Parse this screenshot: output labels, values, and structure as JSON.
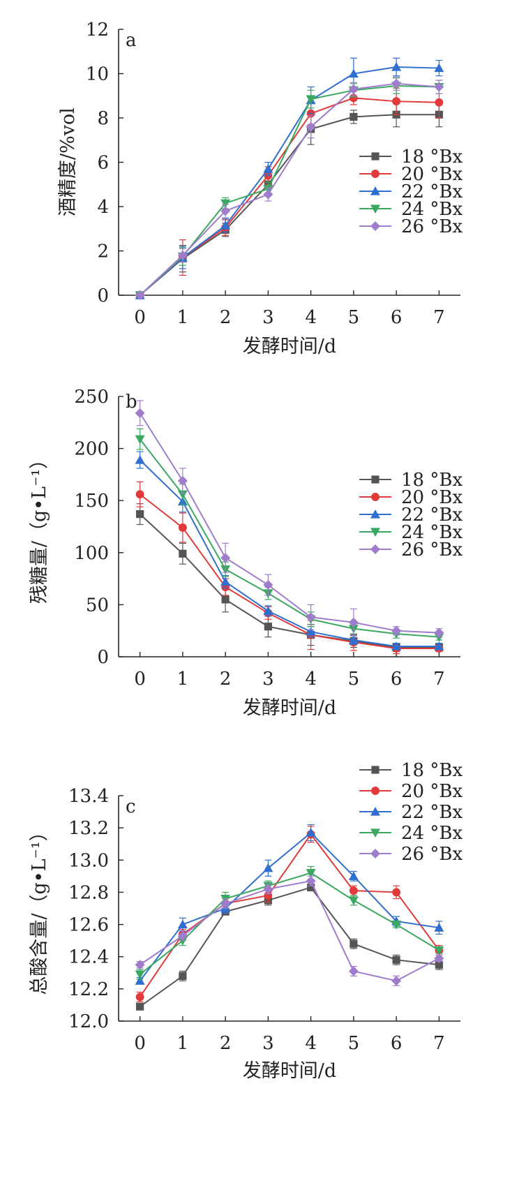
{
  "chart_data": [
    {
      "type": "line",
      "panel_label": "a",
      "ylabel": "酒精度/%vol",
      "xlabel": "发酵时间/d",
      "x": [
        0,
        1,
        2,
        3,
        4,
        5,
        6,
        7
      ],
      "ylim": [
        0,
        12
      ],
      "yticks": [
        0,
        2,
        4,
        6,
        8,
        10,
        12
      ],
      "ytick_labels": [
        "0",
        "2",
        "4",
        "6",
        "8",
        "10",
        "12"
      ],
      "legend_position": "middle-right",
      "series": [
        {
          "name": "18 °Bx",
          "color": "#555555",
          "marker": "square",
          "values": [
            0,
            1.65,
            2.95,
            5.0,
            7.5,
            8.05,
            8.15,
            8.15
          ],
          "errors": [
            0,
            0.6,
            0.3,
            0.4,
            0.7,
            0.3,
            0.55,
            0.55
          ]
        },
        {
          "name": "20 °Bx",
          "color": "#e03a3a",
          "marker": "circle",
          "values": [
            0,
            1.7,
            3.05,
            5.4,
            8.2,
            8.9,
            8.75,
            8.7
          ],
          "errors": [
            0,
            0.8,
            0.35,
            0.4,
            0.5,
            0.3,
            0.6,
            0.7
          ]
        },
        {
          "name": "22 °Bx",
          "color": "#2f6fd0",
          "marker": "triangle-up",
          "values": [
            0,
            1.7,
            3.15,
            5.7,
            8.8,
            10.0,
            10.3,
            10.25
          ],
          "errors": [
            0,
            0.5,
            0.3,
            0.3,
            0.6,
            0.7,
            0.4,
            0.35
          ]
        },
        {
          "name": "24 °Bx",
          "color": "#3aa860",
          "marker": "triangle-down",
          "values": [
            0,
            1.75,
            4.15,
            4.8,
            8.85,
            9.25,
            9.45,
            9.4
          ],
          "errors": [
            0,
            0.4,
            0.25,
            0.3,
            0.4,
            0.3,
            0.35,
            0.3
          ]
        },
        {
          "name": "26 °Bx",
          "color": "#a07ccc",
          "marker": "diamond",
          "values": [
            0,
            1.8,
            3.8,
            4.55,
            7.6,
            9.3,
            9.55,
            9.4
          ],
          "errors": [
            0,
            0.3,
            0.3,
            0.3,
            0.5,
            0.3,
            0.3,
            0.3
          ]
        }
      ]
    },
    {
      "type": "line",
      "panel_label": "b",
      "ylabel": "残糖量/（g•L⁻¹）",
      "xlabel": "发酵时间/d",
      "x": [
        0,
        1,
        2,
        3,
        4,
        5,
        6,
        7
      ],
      "ylim": [
        0,
        250
      ],
      "yticks": [
        0,
        50,
        100,
        150,
        200,
        250
      ],
      "ytick_labels": [
        "0",
        "50",
        "100",
        "150",
        "200",
        "250"
      ],
      "legend_position": "top-right",
      "series": [
        {
          "name": "18 °Bx",
          "color": "#555555",
          "marker": "square",
          "values": [
            137,
            99,
            55,
            29,
            21,
            15,
            9,
            9
          ],
          "errors": [
            10,
            10,
            12,
            10,
            10,
            6,
            4,
            3
          ]
        },
        {
          "name": "20 °Bx",
          "color": "#e03a3a",
          "marker": "circle",
          "values": [
            156,
            124,
            67,
            42,
            21,
            14,
            8,
            8
          ],
          "errors": [
            12,
            14,
            8,
            6,
            14,
            8,
            5,
            3
          ]
        },
        {
          "name": "22 °Bx",
          "color": "#2f6fd0",
          "marker": "triangle-up",
          "values": [
            189,
            149,
            72,
            44,
            24,
            16,
            10,
            10
          ],
          "errors": [
            8,
            10,
            6,
            5,
            5,
            4,
            3,
            3
          ]
        },
        {
          "name": "24 °Bx",
          "color": "#3aa860",
          "marker": "triangle-down",
          "values": [
            209,
            156,
            84,
            61,
            36,
            27,
            22,
            19
          ],
          "errors": [
            10,
            10,
            7,
            6,
            7,
            5,
            4,
            3
          ]
        },
        {
          "name": "26 °Bx",
          "color": "#a07ccc",
          "marker": "diamond",
          "values": [
            234,
            169,
            95,
            69,
            38,
            33,
            25,
            23
          ],
          "errors": [
            12,
            12,
            14,
            10,
            12,
            13,
            4,
            4
          ]
        }
      ]
    },
    {
      "type": "line",
      "panel_label": "c",
      "ylabel": "总酸含量/（g•L⁻¹）",
      "xlabel": "发酵时间/d",
      "x": [
        0,
        1,
        2,
        3,
        4,
        5,
        6,
        7
      ],
      "ylim": [
        12.0,
        13.4
      ],
      "yticks": [
        12.0,
        12.2,
        12.4,
        12.6,
        12.8,
        13.0,
        13.2,
        13.4
      ],
      "ytick_labels": [
        "12.0",
        "12.2",
        "12.4",
        "12.6",
        "12.8",
        "13.0",
        "13.2",
        "13.4"
      ],
      "legend_position": "top-right",
      "series": [
        {
          "name": "18 °Bx",
          "color": "#555555",
          "marker": "square",
          "values": [
            12.09,
            12.28,
            12.68,
            12.75,
            12.83,
            12.48,
            12.38,
            12.35
          ],
          "errors": [
            0.01,
            0.03,
            0.02,
            0.03,
            0.02,
            0.03,
            0.03,
            0.03
          ]
        },
        {
          "name": "20 °Bx",
          "color": "#e03a3a",
          "marker": "circle",
          "values": [
            12.15,
            12.54,
            12.73,
            12.78,
            13.16,
            12.81,
            12.8,
            12.44
          ],
          "errors": [
            0.03,
            0.03,
            0.03,
            0.04,
            0.05,
            0.03,
            0.04,
            0.03
          ]
        },
        {
          "name": "22 °Bx",
          "color": "#2f6fd0",
          "marker": "triangle-up",
          "values": [
            12.25,
            12.6,
            12.7,
            12.95,
            13.17,
            12.9,
            12.62,
            12.58
          ],
          "errors": [
            0.02,
            0.04,
            0.03,
            0.05,
            0.05,
            0.03,
            0.03,
            0.04
          ]
        },
        {
          "name": "24 °Bx",
          "color": "#3aa860",
          "marker": "triangle-down",
          "values": [
            12.29,
            12.5,
            12.76,
            12.84,
            12.92,
            12.75,
            12.6,
            12.44
          ],
          "errors": [
            0.03,
            0.03,
            0.04,
            0.03,
            0.04,
            0.03,
            0.02,
            0.02
          ]
        },
        {
          "name": "26 °Bx",
          "color": "#a07ccc",
          "marker": "diamond",
          "values": [
            12.35,
            12.53,
            12.73,
            12.82,
            12.87,
            12.31,
            12.25,
            12.39
          ],
          "errors": [
            0.02,
            0.03,
            0.03,
            0.03,
            0.03,
            0.03,
            0.03,
            0.02
          ]
        }
      ]
    }
  ]
}
